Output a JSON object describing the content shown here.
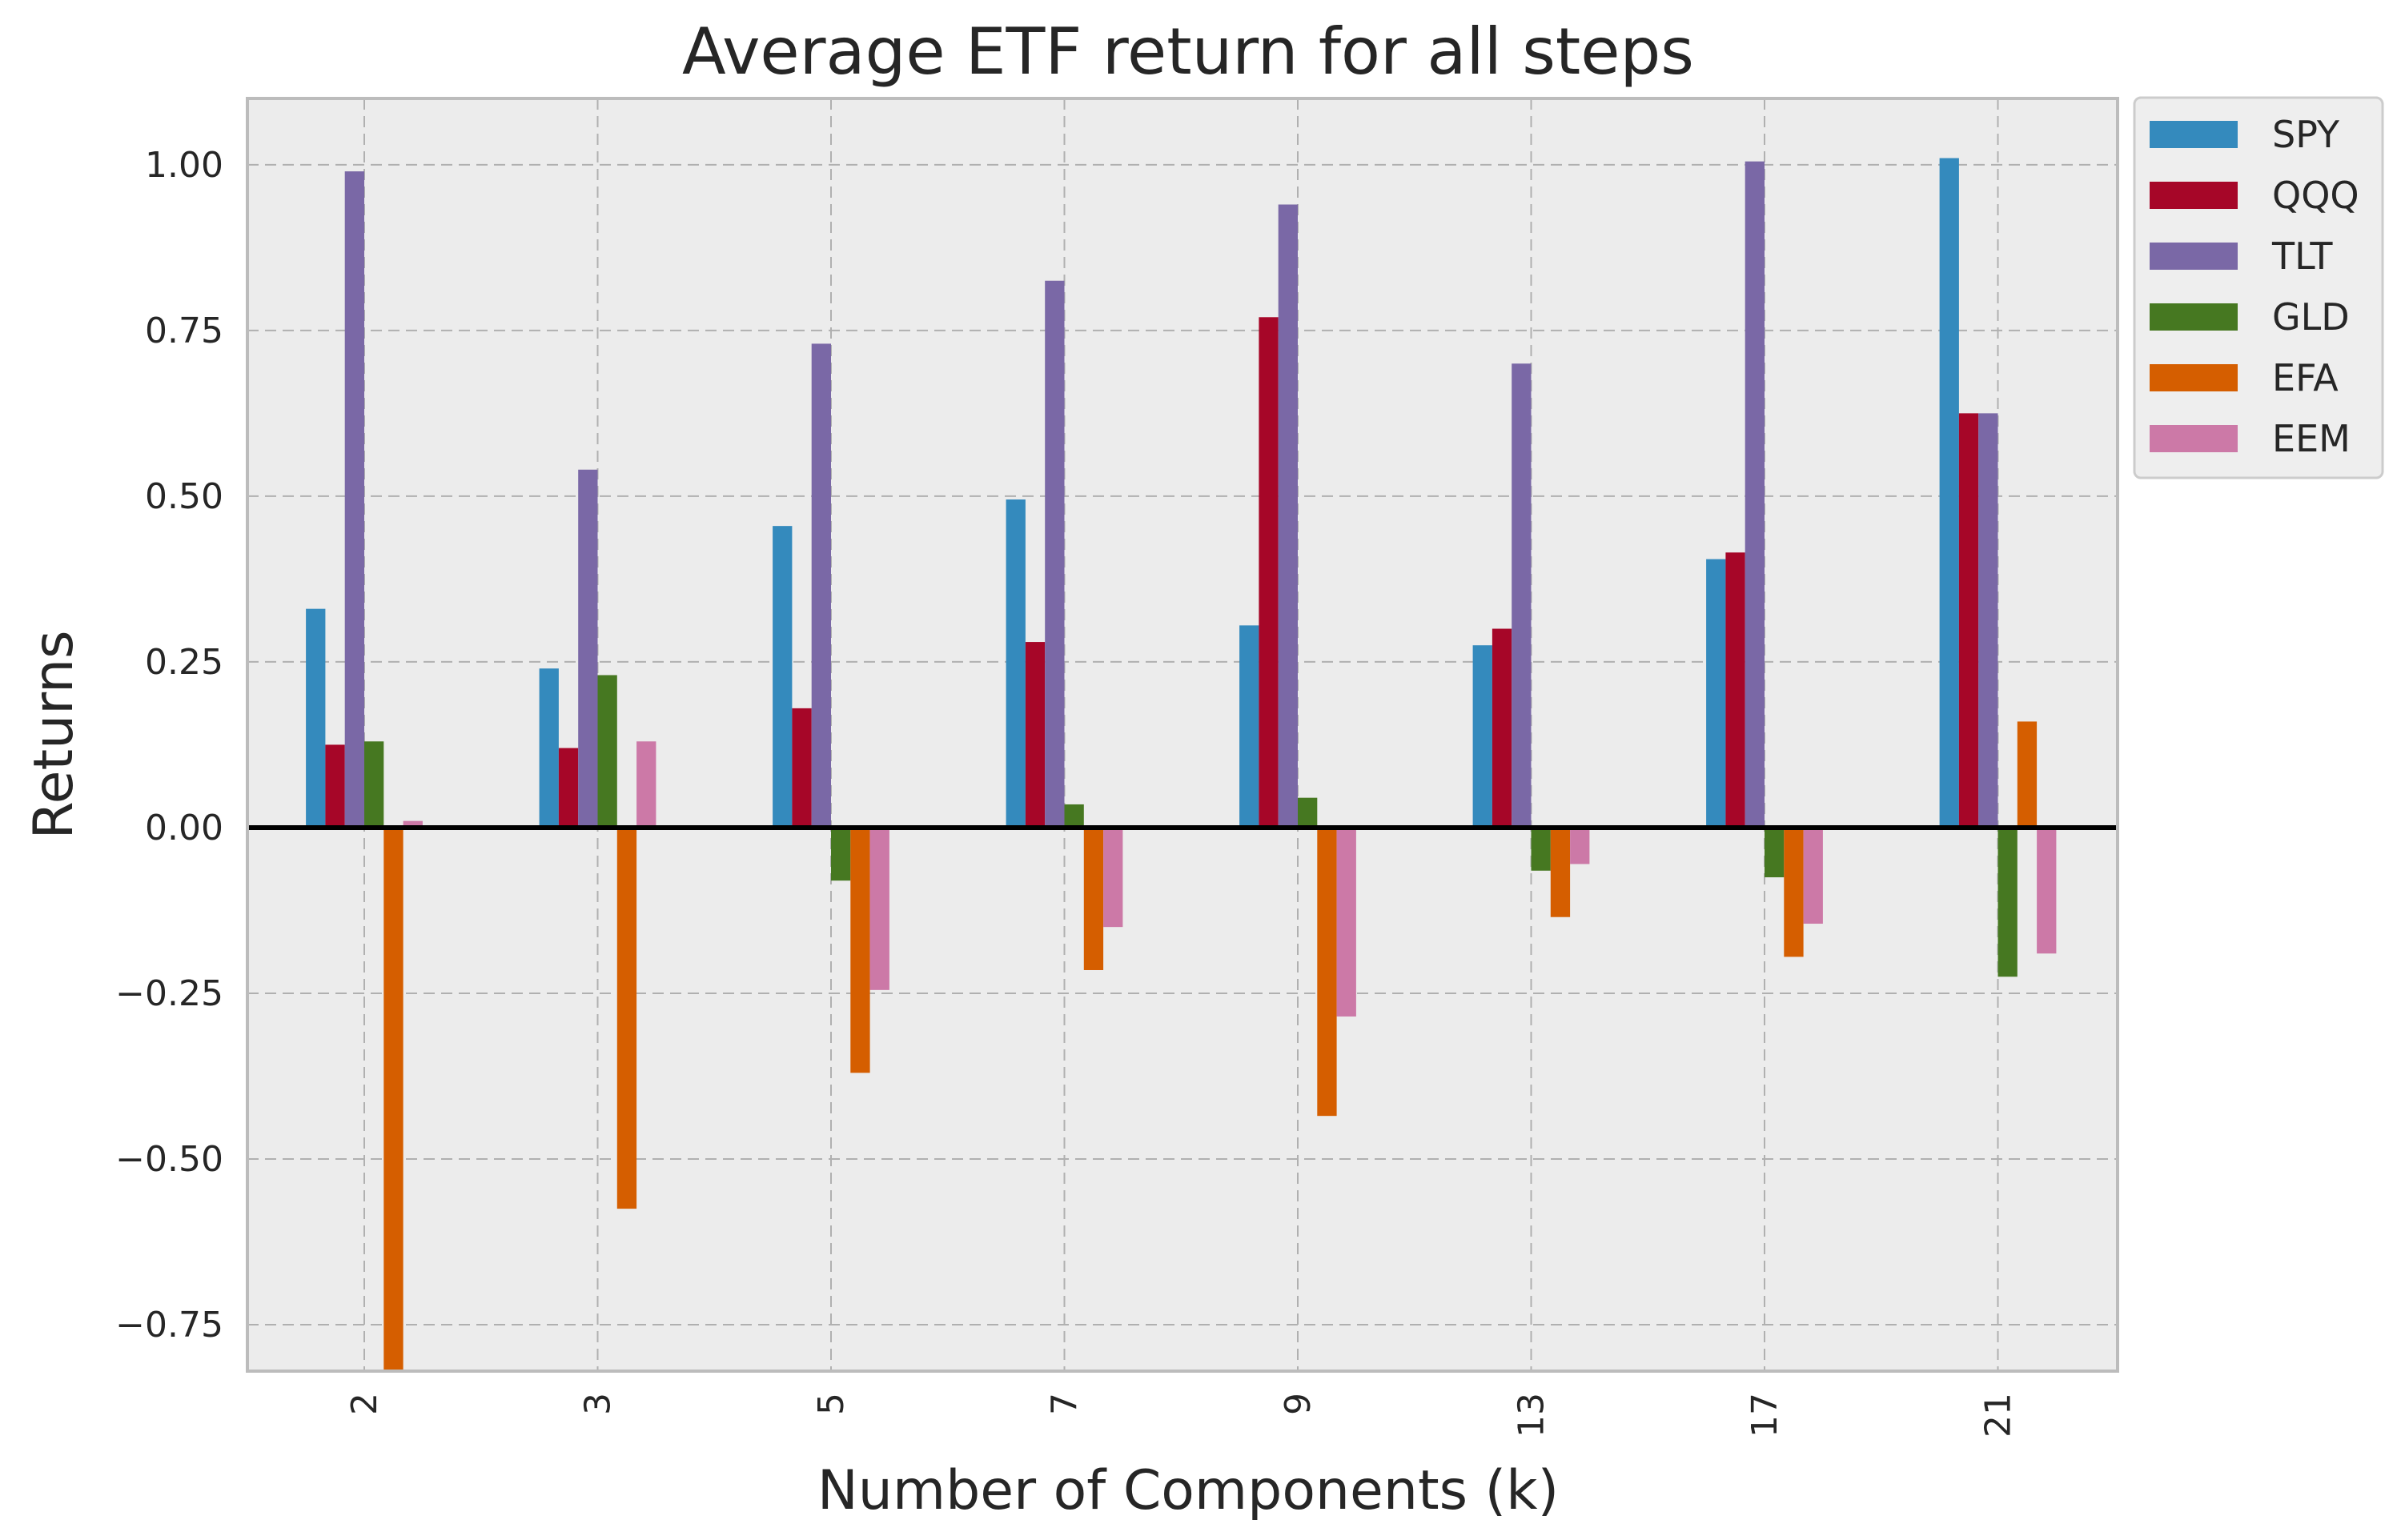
{
  "chart_data": {
    "type": "bar",
    "title": "Average ETF return for all steps",
    "xlabel": "Number of Components (k)",
    "ylabel": "Returns",
    "categories": [
      "2",
      "3",
      "5",
      "7",
      "9",
      "13",
      "17",
      "21"
    ],
    "ylim": [
      -0.82,
      1.1
    ],
    "yticks": [
      -0.75,
      -0.5,
      -0.25,
      0.0,
      0.25,
      0.5,
      0.75,
      1.0
    ],
    "ytick_labels": [
      "−0.75",
      "−0.50",
      "−0.25",
      "0.00",
      "0.25",
      "0.50",
      "0.75",
      "1.00"
    ],
    "grid": true,
    "legend_position": "outside-top-right",
    "background": "#ececec",
    "series": [
      {
        "name": "SPY",
        "color": "#348abd",
        "values": [
          0.33,
          0.24,
          0.455,
          0.495,
          0.305,
          0.275,
          0.405,
          1.01
        ]
      },
      {
        "name": "QQQ",
        "color": "#a60628",
        "values": [
          0.125,
          0.12,
          0.18,
          0.28,
          0.77,
          0.3,
          0.415,
          0.625
        ]
      },
      {
        "name": "TLT",
        "color": "#7a68a6",
        "values": [
          0.99,
          0.54,
          0.73,
          0.825,
          0.94,
          0.7,
          1.005,
          0.625
        ]
      },
      {
        "name": "GLD",
        "color": "#467821",
        "values": [
          0.13,
          0.23,
          -0.08,
          0.035,
          0.045,
          -0.065,
          -0.075,
          -0.225
        ]
      },
      {
        "name": "EFA",
        "color": "#d55e00",
        "values": [
          -0.82,
          -0.575,
          -0.37,
          -0.215,
          -0.435,
          -0.135,
          -0.195,
          0.16
        ]
      },
      {
        "name": "EEM",
        "color": "#cc79a7",
        "values": [
          0.01,
          0.13,
          -0.245,
          -0.15,
          -0.285,
          -0.055,
          -0.145,
          -0.19
        ]
      }
    ]
  }
}
